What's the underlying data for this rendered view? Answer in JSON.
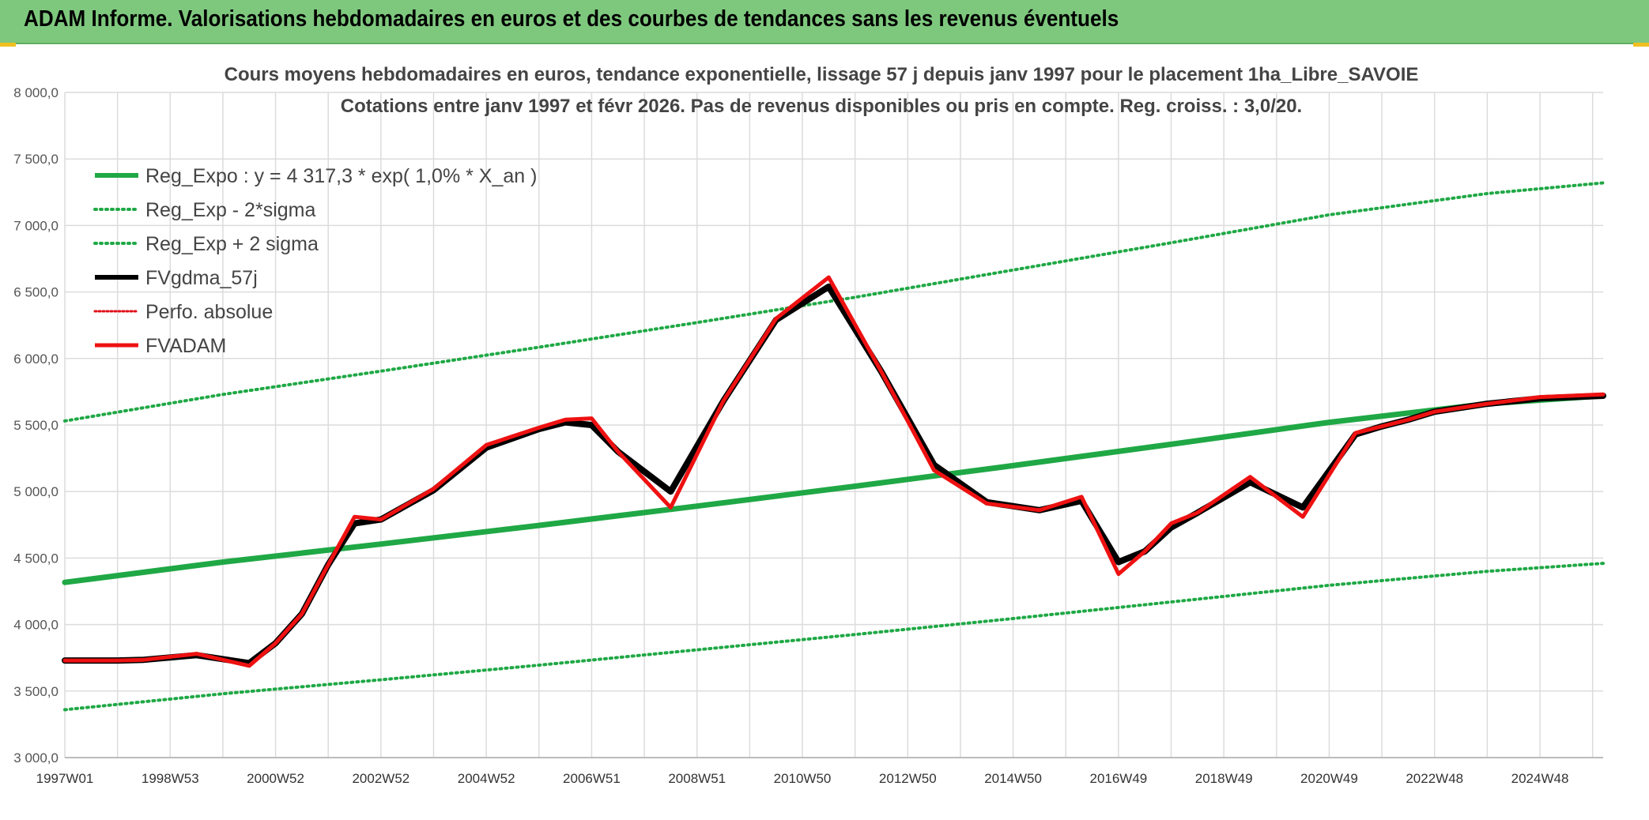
{
  "header": {
    "title": "ADAM Informe. Valorisations hebdomadaires en euros et des courbes de tendances sans les revenus éventuels"
  },
  "colors": {
    "banner": "#7ec87e",
    "reg_expo": "#1fa845",
    "sigma_bands": "#1fa845",
    "fvgdma": "#000000",
    "perfo": "#e0101a",
    "fvadam": "#ee1111",
    "grid": "#dcdcdc"
  },
  "chart_data": {
    "type": "line",
    "title": [
      "Cours moyens hebdomadaires en euros, tendance exponentielle, lissage 57 j depuis janv 1997 pour le placement 1ha_Libre_SAVOIE",
      "Cotations entre janv 1997 et févr 2026. Pas de revenus disponibles ou pris en compte. Reg. croiss. : 3,0/20."
    ],
    "xlabel": "",
    "ylabel": "",
    "x_range": [
      1997.0,
      2026.2
    ],
    "ylim": [
      3000,
      8000
    ],
    "y_ticks": [
      3000,
      3500,
      4000,
      4500,
      5000,
      5500,
      6000,
      6500,
      7000,
      7500,
      8000
    ],
    "y_tick_labels": [
      "3 000,0",
      "3 500,0",
      "4 000,0",
      "4 500,0",
      "5 000,0",
      "5 500,0",
      "6 000,0",
      "6 500,0",
      "7 000,0",
      "7 500,0",
      "8 000,0"
    ],
    "x_tick_positions": [
      1997.0,
      1999.0,
      2001.0,
      2003.0,
      2005.0,
      2007.0,
      2009.0,
      2011.0,
      2013.0,
      2015.0,
      2017.0,
      2019.0,
      2021.0,
      2023.0,
      2025.0
    ],
    "x_tick_labels": [
      "1997W01",
      "1998W53",
      "2000W52",
      "2002W52",
      "2004W52",
      "2006W51",
      "2008W51",
      "2010W50",
      "2012W50",
      "2014W50",
      "2016W49",
      "2018W49",
      "2020W49",
      "2022W48",
      "2024W48"
    ],
    "grid": true,
    "legend_position": "top-left",
    "legend": [
      "Reg_Expo : y = 4 317,3 * exp( 1,0% *  X_an )",
      "Reg_Exp - 2*sigma",
      "Reg_Exp + 2 sigma",
      "FVgdma_57j",
      "Perfo. absolue",
      "FVADAM"
    ],
    "series": [
      {
        "name": "Reg_Expo : y = 4 317,3 * exp( 1,0% *  X_an )",
        "style": "solid-thick",
        "x": [
          1997.0,
          2000.0,
          2003.0,
          2006.0,
          2009.0,
          2012.0,
          2015.0,
          2018.0,
          2021.0,
          2024.0,
          2026.2
        ],
        "values": [
          4317,
          4470,
          4605,
          4745,
          4890,
          5040,
          5195,
          5355,
          5520,
          5660,
          5720
        ]
      },
      {
        "name": "Reg_Exp - 2*sigma",
        "style": "dotted",
        "x": [
          1997.0,
          2000.0,
          2003.0,
          2006.0,
          2009.0,
          2012.0,
          2015.0,
          2018.0,
          2021.0,
          2024.0,
          2026.2
        ],
        "values": [
          3360,
          3480,
          3585,
          3695,
          3810,
          3925,
          4045,
          4170,
          4295,
          4400,
          4460
        ]
      },
      {
        "name": "Reg_Exp + 2 sigma",
        "style": "dotted",
        "x": [
          1997.0,
          2000.0,
          2003.0,
          2006.0,
          2009.0,
          2012.0,
          2015.0,
          2018.0,
          2021.0,
          2024.0,
          2026.2
        ],
        "values": [
          5530,
          5730,
          5905,
          6085,
          6270,
          6460,
          6665,
          6870,
          7080,
          7240,
          7320
        ]
      },
      {
        "name": "FVgdma_57j",
        "style": "solid",
        "x": [
          1997.0,
          1998.0,
          1998.5,
          1999.5,
          2000.5,
          2001.0,
          2001.5,
          2002.0,
          2002.5,
          2003.0,
          2004.0,
          2005.0,
          2006.0,
          2006.5,
          2007.0,
          2007.5,
          2008.5,
          2009.5,
          2010.5,
          2011.5,
          2012.5,
          2013.5,
          2014.5,
          2015.5,
          2016.3,
          2017.0,
          2017.5,
          2018.0,
          2018.5,
          2019.5,
          2020.5,
          2021.5,
          2022.0,
          2022.5,
          2023.0,
          2024.0,
          2025.0,
          2026.2
        ],
        "values": [
          3730,
          3730,
          3735,
          3770,
          3710,
          3860,
          4080,
          4450,
          4760,
          4790,
          5010,
          5330,
          5470,
          5520,
          5500,
          5300,
          5000,
          5680,
          6290,
          6540,
          5900,
          5200,
          4920,
          4860,
          4930,
          4470,
          4550,
          4730,
          4840,
          5070,
          4880,
          5430,
          5490,
          5540,
          5600,
          5660,
          5700,
          5720
        ]
      },
      {
        "name": "Perfo. absolue",
        "style": "dotted",
        "x": [],
        "values": []
      },
      {
        "name": "FVADAM",
        "style": "solid-thick",
        "x": [
          1997.0,
          1998.0,
          1998.5,
          1999.5,
          2000.5,
          2001.0,
          2001.5,
          2002.0,
          2002.5,
          2003.0,
          2004.0,
          2005.0,
          2006.0,
          2006.5,
          2007.0,
          2007.5,
          2008.5,
          2009.5,
          2010.5,
          2011.5,
          2012.5,
          2013.5,
          2014.5,
          2015.5,
          2016.3,
          2017.0,
          2017.5,
          2018.0,
          2018.5,
          2019.5,
          2020.5,
          2021.5,
          2022.0,
          2022.5,
          2023.0,
          2024.0,
          2025.0,
          2026.2
        ],
        "values": [
          3730,
          3730,
          3735,
          3780,
          3690,
          3860,
          4080,
          4450,
          4810,
          4790,
          5020,
          5350,
          5480,
          5540,
          5550,
          5300,
          4880,
          5680,
          6300,
          6610,
          5900,
          5160,
          4910,
          4860,
          4960,
          4380,
          4550,
          4760,
          4840,
          5110,
          4810,
          5440,
          5490,
          5540,
          5600,
          5660,
          5710,
          5730
        ]
      }
    ]
  }
}
